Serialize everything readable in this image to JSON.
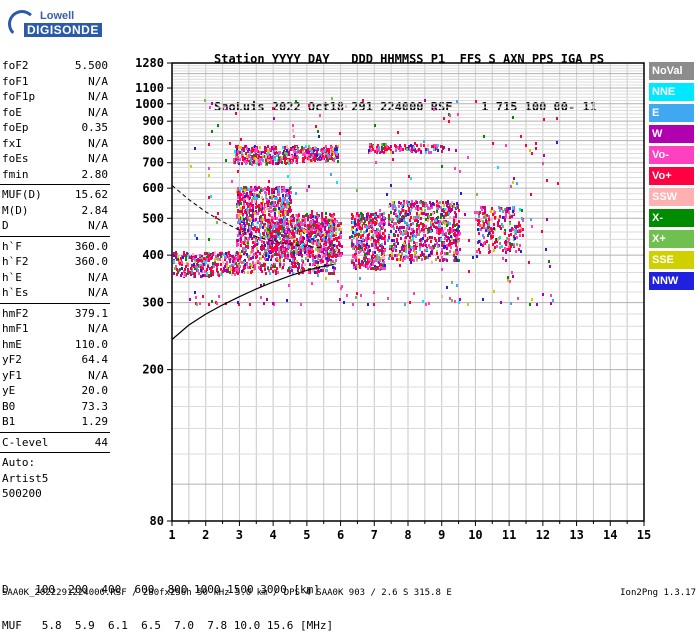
{
  "logo": {
    "line1": "Lowell",
    "line2": "DIGISONDE"
  },
  "header": {
    "line1": "Station YYYY DAY   DDD HHMMSS P1  FFS S AXN PPS IGA PS",
    "line2": "SaoLuis 2022 Oct18 291 224000 RSF    1 715 100 00- 11"
  },
  "params": [
    {
      "name": "foF2",
      "value": "5.500"
    },
    {
      "name": "foF1",
      "value": "N/A"
    },
    {
      "name": "foF1p",
      "value": "N/A"
    },
    {
      "name": "foE",
      "value": "N/A"
    },
    {
      "name": "foEp",
      "value": "0.35"
    },
    {
      "name": "fxI",
      "value": "N/A"
    },
    {
      "name": "foEs",
      "value": "N/A"
    },
    {
      "name": "fmin",
      "value": "2.80"
    },
    {
      "sep": true
    },
    {
      "name": "MUF(D)",
      "value": "15.62"
    },
    {
      "name": "M(D)",
      "value": "2.84"
    },
    {
      "name": "D",
      "value": "N/A"
    },
    {
      "sep": true
    },
    {
      "name": "h`F",
      "value": "360.0"
    },
    {
      "name": "h`F2",
      "value": "360.0"
    },
    {
      "name": "h`E",
      "value": "N/A"
    },
    {
      "name": "h`Es",
      "value": "N/A"
    },
    {
      "sep": true
    },
    {
      "name": "hmF2",
      "value": "379.1"
    },
    {
      "name": "hmF1",
      "value": "N/A"
    },
    {
      "name": "hmE",
      "value": "110.0"
    },
    {
      "name": "yF2",
      "value": "64.4"
    },
    {
      "name": "yF1",
      "value": "N/A"
    },
    {
      "name": "yE",
      "value": "20.0"
    },
    {
      "name": "B0",
      "value": "73.3"
    },
    {
      "name": "B1",
      "value": "1.29"
    },
    {
      "sep": true
    },
    {
      "name": "C-level",
      "value": "44"
    },
    {
      "sep": true
    },
    {
      "name": "Auto:",
      "value": ""
    },
    {
      "name": "Artist5",
      "value": ""
    },
    {
      "name": "500200",
      "value": ""
    }
  ],
  "legend": [
    {
      "label": "NoVal",
      "color": "#8c8c8c"
    },
    {
      "label": "NNE",
      "color": "#00e8ff"
    },
    {
      "label": "E",
      "color": "#3fa8f0"
    },
    {
      "label": "W",
      "color": "#b000b0"
    },
    {
      "label": "Vo-",
      "color": "#ff40c0"
    },
    {
      "label": "Vo+",
      "color": "#ff0040"
    },
    {
      "label": "SSW",
      "color": "#ffb0b0"
    },
    {
      "label": "X-",
      "color": "#008c00"
    },
    {
      "label": "X+",
      "color": "#70c050"
    },
    {
      "label": "SSE",
      "color": "#d0d000"
    },
    {
      "label": "NNW",
      "color": "#2020e0"
    }
  ],
  "footer": {
    "dist_line": "D    100  200  400  600  800 1000 1500 3000 [km]",
    "muf_line": "MUF   5.8  5.9  6.1  6.5  7.0  7.8 10.0 15.6 [MHz]",
    "source_line": "SAA0K_2022291224000.RSF / 280fx256h 50 kHz 5.0 km / DPS-4 SAA0K 903 / 2.6 S 315.8 E",
    "version": "Ion2Png 1.3.17"
  },
  "chart_data": {
    "type": "scatter",
    "title": "",
    "xlabel": "",
    "ylabel": "",
    "xlim": [
      1,
      15
    ],
    "ylim": [
      80,
      1280
    ],
    "y_scale": "log",
    "x_ticks": [
      1,
      2,
      3,
      4,
      5,
      6,
      7,
      8,
      9,
      10,
      11,
      12,
      13,
      14,
      15
    ],
    "y_ticks": [
      80,
      200,
      300,
      400,
      500,
      600,
      700,
      800,
      900,
      1000,
      1100,
      1280
    ],
    "grid": true,
    "clusters": [
      {
        "x": [
          1.0,
          3.0
        ],
        "y": [
          355,
          410
        ],
        "n": 320,
        "series": "trace"
      },
      {
        "x": [
          2.9,
          5.8
        ],
        "y": [
          360,
          520
        ],
        "n": 950,
        "series": "trace"
      },
      {
        "x": [
          3.8,
          6.0
        ],
        "y": [
          400,
          500
        ],
        "n": 500,
        "series": "trace"
      },
      {
        "x": [
          2.9,
          4.5
        ],
        "y": [
          520,
          610
        ],
        "n": 350,
        "series": "trace"
      },
      {
        "x": [
          2.8,
          4.7
        ],
        "y": [
          700,
          780
        ],
        "n": 300,
        "series": "trace"
      },
      {
        "x": [
          4.6,
          5.9
        ],
        "y": [
          710,
          780
        ],
        "n": 200,
        "series": "trace"
      },
      {
        "x": [
          6.3,
          7.3
        ],
        "y": [
          370,
          520
        ],
        "n": 420,
        "series": "trace"
      },
      {
        "x": [
          7.4,
          9.5
        ],
        "y": [
          390,
          560
        ],
        "n": 650,
        "series": "trace"
      },
      {
        "x": [
          6.8,
          9.1
        ],
        "y": [
          750,
          790
        ],
        "n": 120,
        "series": "trace"
      },
      {
        "x": [
          10.0,
          11.4
        ],
        "y": [
          410,
          540
        ],
        "n": 220,
        "series": "trace"
      },
      {
        "x": [
          1.5,
          12.5
        ],
        "y": [
          300,
          1050
        ],
        "n": 260,
        "series": "trace"
      }
    ],
    "profile_curve": {
      "x": [
        1.0,
        1.5,
        2.0,
        2.5,
        3.0,
        3.5,
        4.0,
        4.5,
        5.0,
        5.5,
        5.8
      ],
      "y": [
        240,
        262,
        280,
        296,
        311,
        326,
        340,
        353,
        365,
        374,
        378
      ]
    },
    "dashed_curve": {
      "x": [
        1.0,
        1.5,
        2.0,
        2.5,
        3.0,
        3.5,
        4.0,
        4.5,
        5.0,
        5.5
      ],
      "y": [
        610,
        560,
        520,
        490,
        465,
        447,
        435,
        428,
        422,
        418
      ]
    }
  }
}
